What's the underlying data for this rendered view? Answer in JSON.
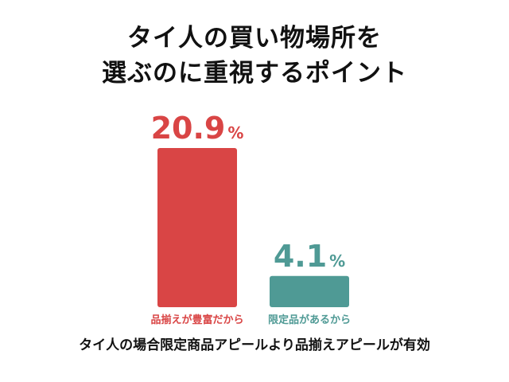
{
  "title_lines": [
    "タイ人の買い物場所を",
    "選ぶのに重視するポイント"
  ],
  "caption": "タイ人の場合限定商品アピールより品揃えアピールが有効",
  "chart_data": {
    "type": "bar",
    "categories": [
      "品揃えが豊富だから",
      "限定品があるから"
    ],
    "values": [
      20.9,
      4.1
    ],
    "value_labels": [
      "20.9",
      "4.1"
    ],
    "unit": "%",
    "colors": [
      "#d94545",
      "#4f9a95"
    ],
    "ylim": [
      0,
      20.9
    ],
    "grid": false,
    "legend": "none"
  }
}
